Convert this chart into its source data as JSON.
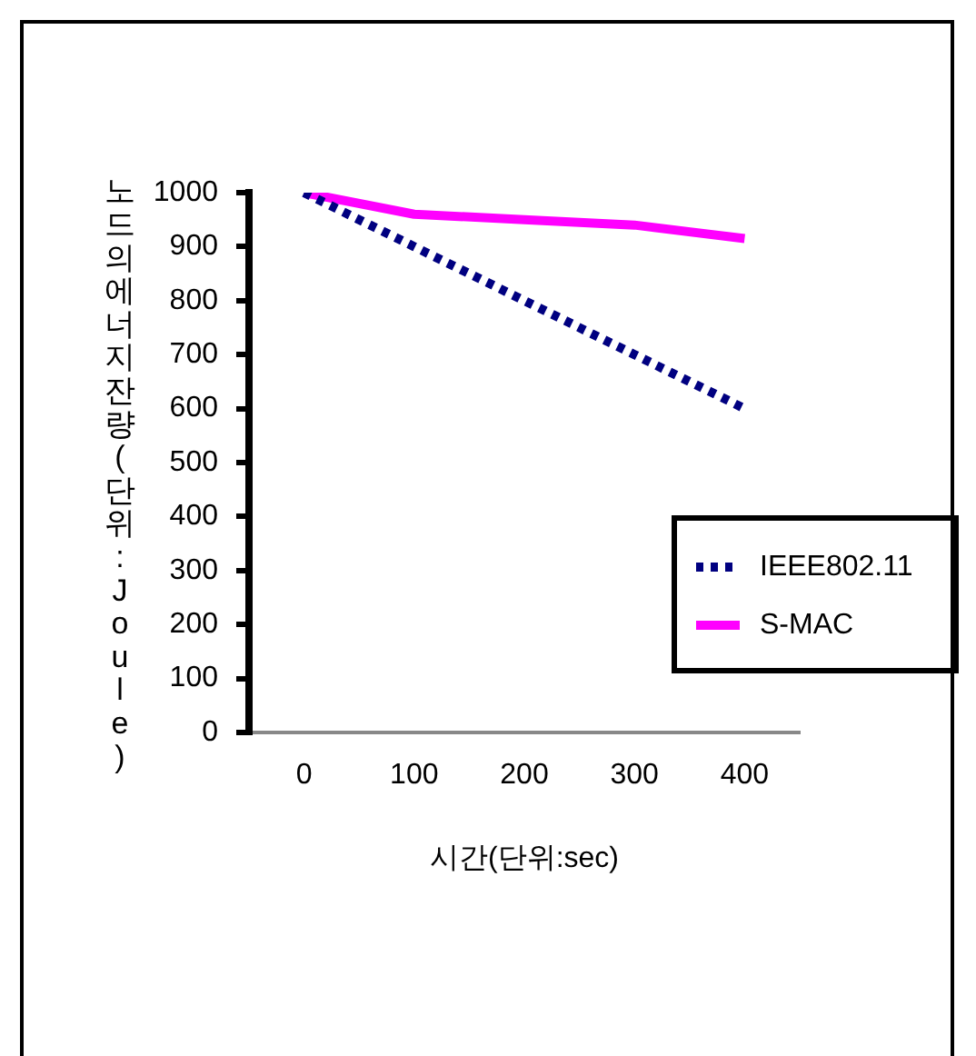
{
  "chart_data": {
    "type": "line",
    "xlabel": "시간(단위:sec)",
    "ylabel": "노드의에너지잔량(단위:Joule)",
    "categories": [
      "0",
      "100",
      "200",
      "300",
      "400"
    ],
    "series": [
      {
        "name": "IEEE802.11",
        "color": "#000080",
        "values": [
          1000,
          900,
          800,
          700,
          600
        ],
        "line_style": "dotted"
      },
      {
        "name": "S-MAC",
        "color": "#ff00ff",
        "values": [
          1000,
          960,
          950,
          940,
          915
        ],
        "line_style": "solid"
      }
    ],
    "ylim": [
      0,
      1000
    ],
    "yticks": [
      0,
      100,
      200,
      300,
      400,
      500,
      600,
      700,
      800,
      900,
      1000
    ],
    "grid": false,
    "legend": "right",
    "marker": "none"
  }
}
